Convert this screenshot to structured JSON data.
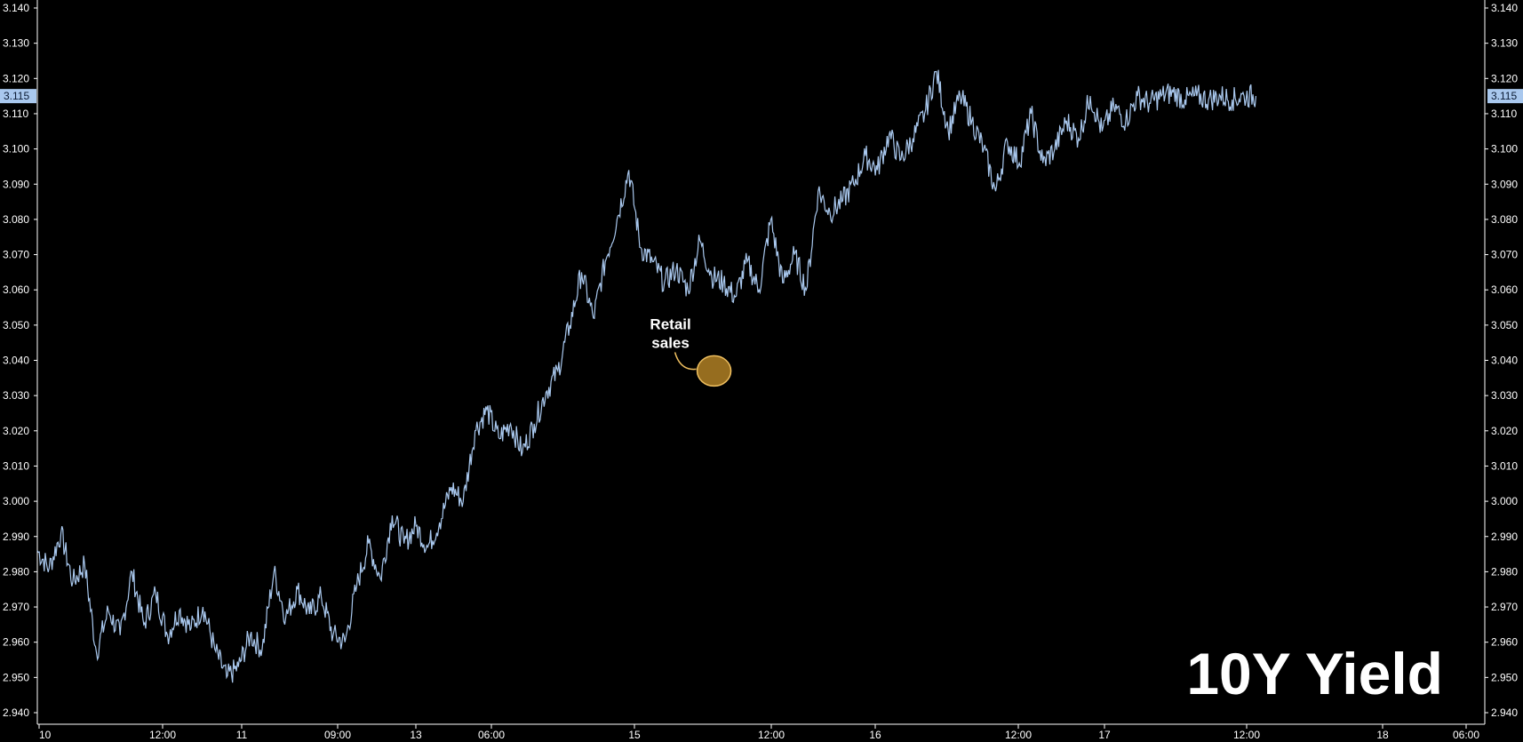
{
  "chart_data": {
    "type": "line",
    "title": "10Y Yield",
    "ylim": [
      2.938,
      3.142
    ],
    "y_ticks": [
      "3.140",
      "3.130",
      "3.120",
      "3.110",
      "3.100",
      "3.090",
      "3.080",
      "3.070",
      "3.060",
      "3.050",
      "3.040",
      "3.030",
      "3.020",
      "3.010",
      "3.000",
      "2.990",
      "2.980",
      "2.970",
      "2.960",
      "2.950",
      "2.940"
    ],
    "x_ticks": [
      "10",
      "12:00",
      "11",
      "09:00",
      "13",
      "06:00",
      "15",
      "12:00",
      "16",
      "12:00",
      "17",
      "12:00",
      "18",
      "06:00"
    ],
    "last_value": "3.115",
    "annotation": {
      "text_line1": "Retail",
      "text_line2": "sales",
      "x_index": 28.6,
      "y": 3.037
    },
    "series": [
      {
        "color": "#a9c8ee",
        "x": [
          0,
          0.5,
          1,
          1.5,
          2,
          2.5,
          3,
          3.5,
          4,
          4.5,
          5,
          5.5,
          6,
          6.5,
          7,
          7.5,
          8,
          8.5,
          9,
          9.5,
          10,
          10.5,
          11,
          11.5,
          12,
          12.5,
          13,
          13.5,
          14,
          14.5,
          15,
          15.5,
          16,
          16.5,
          17,
          17.5,
          18,
          18.5,
          19,
          19.5,
          20,
          20.5,
          21,
          21.5,
          22,
          22.5,
          23,
          23.5,
          24,
          24.5,
          25,
          25.5,
          26,
          26.5,
          27,
          27.5,
          28,
          28.5,
          29,
          29.5,
          30,
          30.5,
          31,
          31.5,
          32,
          32.5,
          33,
          33.5,
          34,
          34.5,
          35,
          35.5,
          36,
          36.5,
          37,
          37.5,
          38,
          38.5,
          39,
          39.5,
          40,
          40.5,
          41,
          41.5,
          42,
          42.5,
          43,
          43.5,
          44,
          44.5,
          45,
          45.5,
          46,
          46.5,
          47,
          47.5,
          48,
          48.5,
          49,
          49.5,
          50,
          50.5,
          51,
          51.5
        ],
        "values": [
          2.986,
          2.981,
          2.991,
          2.977,
          2.982,
          2.957,
          2.969,
          2.962,
          2.98,
          2.965,
          2.974,
          2.962,
          2.969,
          2.964,
          2.97,
          2.958,
          2.95,
          2.953,
          2.962,
          2.958,
          2.98,
          2.967,
          2.975,
          2.968,
          2.973,
          2.962,
          2.96,
          2.976,
          2.988,
          2.978,
          2.996,
          2.988,
          2.993,
          2.987,
          2.994,
          3.004,
          3.0,
          3.02,
          3.026,
          3.018,
          3.022,
          3.014,
          3.022,
          3.031,
          3.037,
          3.05,
          3.065,
          3.052,
          3.068,
          3.08,
          3.094,
          3.072,
          3.068,
          3.062,
          3.066,
          3.06,
          3.074,
          3.064,
          3.062,
          3.058,
          3.068,
          3.06,
          3.08,
          3.062,
          3.07,
          3.06,
          3.088,
          3.082,
          3.085,
          3.09,
          3.098,
          3.094,
          3.104,
          3.097,
          3.103,
          3.11,
          3.122,
          3.105,
          3.115,
          3.108,
          3.1,
          3.088,
          3.102,
          3.096,
          3.11,
          3.096,
          3.1,
          3.108,
          3.103,
          3.115,
          3.105,
          3.112,
          3.108,
          3.115,
          3.113,
          3.115,
          3.116,
          3.114,
          3.115,
          3.114,
          3.115,
          3.114,
          3.115,
          3.115
        ]
      }
    ]
  }
}
